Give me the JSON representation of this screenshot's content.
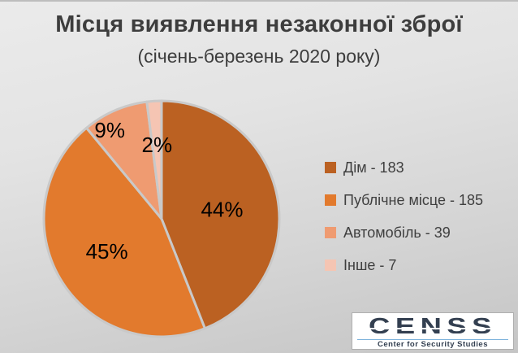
{
  "title": "Місця виявлення незаконної зброї",
  "subtitle": "(січень-березень 2020 року)",
  "colors": {
    "background_light": "#EBEBEB",
    "background_dark": "#C5C5C5",
    "text": "#3D3D3D",
    "slice_gap": "#C9C9C9",
    "logo_navy": "#333F50",
    "logo_rule_blue": "#7EB3DC"
  },
  "chart_data": {
    "type": "pie",
    "title": "Місця виявлення незаконної зброї",
    "subtitle": "(січень-березень 2020 року)",
    "direction": "clockwise",
    "start_angle_deg": 0,
    "legend_position": "right",
    "slice_gap_color": "#C9C9C9",
    "percent_label_color": "#000000",
    "segments": [
      {
        "key": "home",
        "label": "Дім",
        "count": 183,
        "percent": 44,
        "percent_label": "44%",
        "display": "Дім - 183",
        "color": "#BB6122",
        "label_radius": 0.52,
        "label_angle_offset": 2
      },
      {
        "key": "public-place",
        "label": "Публічне місце",
        "count": 185,
        "percent": 45,
        "percent_label": "45%",
        "display": "Публічне місце - 185",
        "color": "#E27A2D",
        "label_radius": 0.54,
        "label_angle_offset": 0
      },
      {
        "key": "car",
        "label": "Автомобіль",
        "count": 39,
        "percent": 9,
        "percent_label": "9%",
        "display": "Автомобіль - 39",
        "color": "#EF9B71",
        "label_radius": 0.87,
        "label_angle_offset": -7
      },
      {
        "key": "other",
        "label": "Інше",
        "count": 7,
        "percent": 2,
        "percent_label": "2%",
        "display": "Інше - 7",
        "color": "#F5C5B3",
        "label_radius": 0.63,
        "label_angle_offset": 0
      }
    ]
  },
  "logo": {
    "name": "CENSS",
    "subtitle": "Center for Security Studies"
  }
}
